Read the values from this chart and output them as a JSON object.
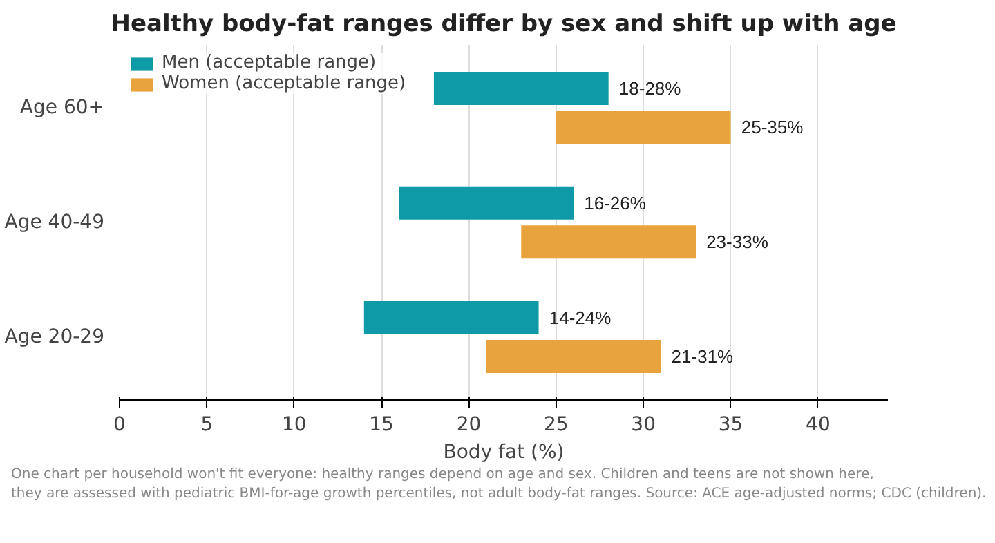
{
  "chart_data": {
    "type": "bar",
    "orientation": "horizontal",
    "title": "Healthy body-fat ranges differ by sex and shift up with age",
    "xlabel": "Body fat (%)",
    "categories": [
      "Age 60+",
      "Age 40-49",
      "Age 20-29"
    ],
    "series": [
      {
        "name": "Men (acceptable range)",
        "color": "#0e9aa7",
        "base": [
          18,
          16,
          14
        ],
        "values": [
          10,
          10,
          10
        ]
      },
      {
        "name": "Women (acceptable range)",
        "color": "#e8a33d",
        "base": [
          25,
          23,
          21
        ],
        "values": [
          10,
          10,
          10
        ]
      }
    ],
    "xlim": [
      0,
      44
    ],
    "xticks": [
      0,
      5,
      10,
      15,
      20,
      25,
      30,
      35,
      40
    ],
    "grid": "x",
    "legend": "top left",
    "annotations": [
      {
        "text": "18-28%",
        "x": 28,
        "y": "Age 60+"
      },
      {
        "text": "25-35%",
        "x": 35,
        "y": "Age 60+"
      },
      {
        "text": "16-26%",
        "x": 26,
        "y": "Age 40-49"
      },
      {
        "text": "23-33%",
        "x": 33,
        "y": "Age 40-49"
      },
      {
        "text": "14-24%",
        "x": 24,
        "y": "Age 20-29"
      },
      {
        "text": "21-31%",
        "x": 31,
        "y": "Age 20-29"
      },
      "One chart per household won't fit everyone: healthy ranges depend on age and sex. Children and teens are not shown here,",
      "they are assessed with pediatric BMI-for-age growth percentiles, not adult body-fat ranges.  Source: ACE age-adjusted norms; CDC (children)."
    ]
  }
}
